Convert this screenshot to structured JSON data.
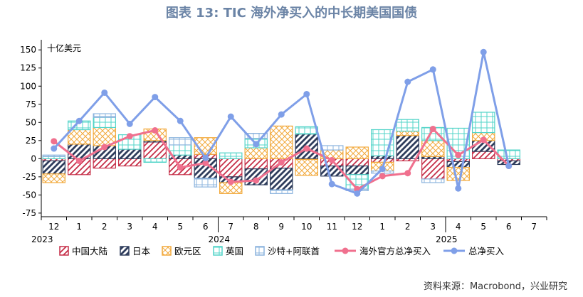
{
  "title": "图表 13: TIC 海外净买入的中长期美国国债",
  "source": "资料来源：Macrobond，兴业研究",
  "chart_data": {
    "type": "bar",
    "unit_label": "十亿美元",
    "ylim": [
      -80,
      160
    ],
    "yticks": [
      -75,
      -50,
      -25,
      0,
      25,
      50,
      75,
      100,
      125,
      150
    ],
    "categories": [
      "12",
      "1",
      "2",
      "3",
      "4",
      "5",
      "6",
      "7",
      "8",
      "9",
      "10",
      "11",
      "12",
      "1",
      "2",
      "3",
      "4",
      "5",
      "6",
      "7"
    ],
    "year_labels": [
      {
        "index": 0,
        "text": "2023"
      },
      {
        "index": 7,
        "text": "2024"
      },
      {
        "index": 16,
        "text": "2025"
      }
    ],
    "bar_series": [
      {
        "name": "中国大陆",
        "color": "#c62f48",
        "values": [
          -3,
          -22,
          -13,
          -10,
          23,
          -22,
          6,
          -25,
          -14,
          -13,
          -1,
          -10,
          -10,
          -5,
          -3,
          -28,
          -4,
          10,
          -3,
          null
        ]
      },
      {
        "name": "日本",
        "color": "#2f3d5c",
        "values": [
          -18,
          20,
          18,
          13,
          2,
          5,
          -27,
          -8,
          -22,
          -30,
          34,
          -14,
          -12,
          4,
          32,
          3,
          -8,
          15,
          -5,
          null
        ]
      },
      {
        "name": "欧元区",
        "color": "#f2a93b",
        "values": [
          -12,
          20,
          25,
          0,
          16,
          0,
          23,
          -15,
          15,
          45,
          -22,
          12,
          16,
          -12,
          6,
          22,
          -18,
          11,
          0,
          null
        ]
      },
      {
        "name": "英国",
        "color": "#52d4c8",
        "values": [
          3,
          12,
          14,
          20,
          -5,
          14,
          0,
          8,
          13,
          0,
          10,
          0,
          -20,
          36,
          16,
          18,
          42,
          28,
          12,
          null
        ]
      },
      {
        "name": "沙特+阿联酋",
        "color": "#8cb4de",
        "values": [
          2,
          0,
          5,
          0,
          0,
          10,
          -12,
          0,
          7,
          -5,
          0,
          6,
          -2,
          -3,
          0,
          -5,
          0,
          0,
          0,
          null
        ]
      }
    ],
    "line_series": [
      {
        "name": "海外官方总净买入",
        "color": "#f0708e",
        "values": [
          24,
          -3,
          16,
          31,
          39,
          -12,
          -6,
          -32,
          -30,
          -5,
          14,
          -2,
          -42,
          -24,
          -20,
          41,
          5,
          26,
          -10,
          null
        ]
      },
      {
        "name": "总净买入",
        "color": "#7f9fe8",
        "values": [
          14,
          52,
          91,
          48,
          85,
          52,
          1,
          58,
          20,
          61,
          89,
          -35,
          -48,
          -14,
          106,
          123,
          -41,
          147,
          -10,
          null
        ]
      }
    ]
  }
}
